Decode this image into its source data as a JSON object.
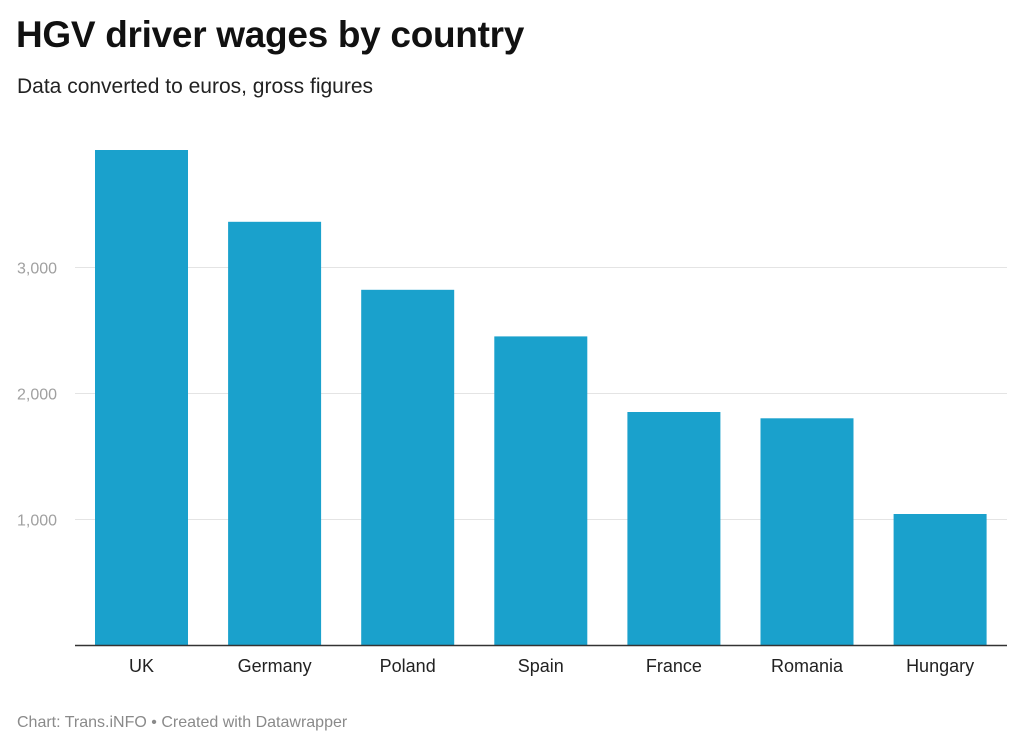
{
  "header": {
    "title": "HGV driver wages by country",
    "subtitle": "Data converted to euros, gross figures"
  },
  "footer": {
    "source": "Chart: Trans.iNFO",
    "separator": "•",
    "credit": "Created with Datawrapper"
  },
  "colors": {
    "bar": "#1aa1cc",
    "grid": "#e4e4e4",
    "axis": "#333333"
  },
  "chart_data": {
    "type": "bar",
    "title": "HGV driver wages by country",
    "subtitle": "Data converted to euros, gross figures",
    "xlabel": "",
    "ylabel": "",
    "categories": [
      "UK",
      "Germany",
      "Poland",
      "Spain",
      "France",
      "Romania",
      "Hungary"
    ],
    "values": [
      3930,
      3360,
      2820,
      2450,
      1850,
      1800,
      1040
    ],
    "ylim": [
      0,
      3930
    ],
    "yticks": [
      1000,
      2000,
      3000
    ],
    "ytick_labels": [
      "1,000",
      "2,000",
      "3,000"
    ],
    "grid": true,
    "legend": "none"
  }
}
